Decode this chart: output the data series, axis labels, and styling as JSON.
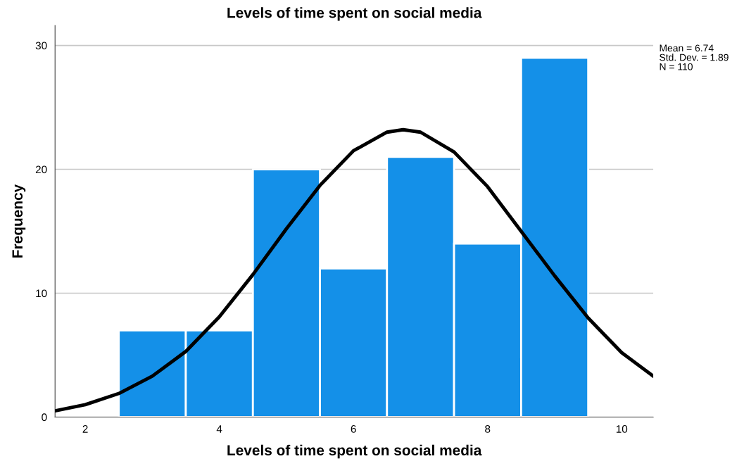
{
  "chart_data": {
    "type": "histogram",
    "title": "Levels of time spent on social media",
    "xlabel": "Levels of time spent on social media",
    "ylabel": "Frequency",
    "bins": [
      2.5,
      3.5,
      4.5,
      5.5,
      6.5,
      7.5,
      8.5,
      9.5
    ],
    "values": [
      7,
      7,
      20,
      12,
      21,
      14,
      29
    ],
    "color": "#1490e8",
    "series": [
      {
        "type": "line",
        "color": "#000000",
        "x": [
          1.55,
          2,
          2.5,
          3,
          3.5,
          4,
          4.5,
          5,
          5.5,
          6,
          6.5,
          6.74,
          7,
          7.5,
          8,
          8.5,
          9,
          9.5,
          10,
          10.47
        ],
        "values": [
          0.5,
          1.0,
          1.9,
          3.3,
          5.3,
          8.1,
          11.5,
          15.2,
          18.7,
          21.5,
          23.0,
          23.2,
          23.0,
          21.4,
          18.6,
          15.0,
          11.4,
          8.0,
          5.2,
          3.3
        ]
      }
    ],
    "xlim": [
      1.55,
      10.47
    ],
    "xticks": [
      2,
      4,
      6,
      8,
      10
    ],
    "ylim": [
      0,
      31.6
    ],
    "yticks": [
      0,
      10,
      20,
      30
    ],
    "grid": "y",
    "annotations": [
      "Mean = 6.74",
      "Std. Dev. = 1.89",
      "N = 110"
    ]
  }
}
